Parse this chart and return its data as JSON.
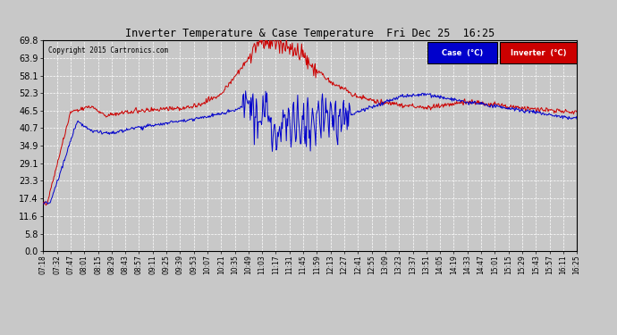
{
  "title": "Inverter Temperature & Case Temperature  Fri Dec 25  16:25",
  "copyright": "Copyright 2015 Cartronics.com",
  "yticks": [
    0.0,
    5.8,
    11.6,
    17.4,
    23.3,
    29.1,
    34.9,
    40.7,
    46.5,
    52.3,
    58.1,
    63.9,
    69.8
  ],
  "ymin": 0.0,
  "ymax": 69.8,
  "bg_color": "#c8c8c8",
  "plot_bg_color": "#c8c8c8",
  "case_color": "#0000cc",
  "inverter_color": "#cc0000",
  "legend_case_bg": "#0000cc",
  "legend_inv_bg": "#cc0000",
  "xtick_labels": [
    "07:18",
    "07:32",
    "07:47",
    "08:01",
    "08:15",
    "08:29",
    "08:43",
    "08:57",
    "09:11",
    "09:25",
    "09:39",
    "09:53",
    "10:07",
    "10:21",
    "10:35",
    "10:49",
    "11:03",
    "11:17",
    "11:31",
    "11:45",
    "11:59",
    "12:13",
    "12:27",
    "12:41",
    "12:55",
    "13:09",
    "13:23",
    "13:37",
    "13:51",
    "14:05",
    "14:19",
    "14:33",
    "14:47",
    "15:01",
    "15:15",
    "15:29",
    "15:43",
    "15:57",
    "16:11",
    "16:25"
  ]
}
